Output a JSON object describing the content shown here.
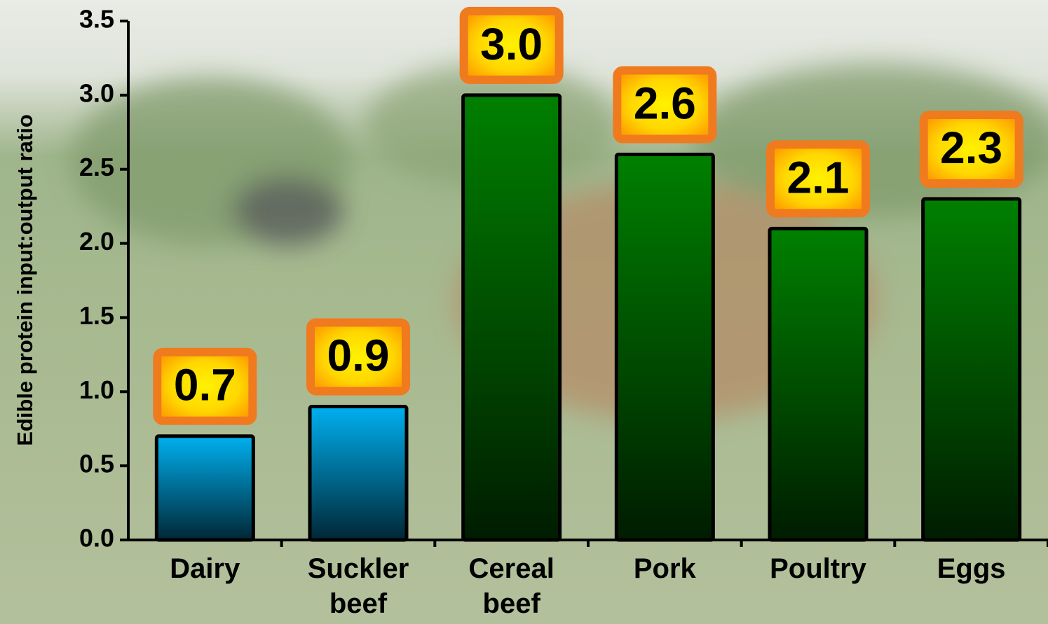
{
  "chart_data": {
    "type": "bar",
    "y_label": "Edible protein input:output ratio",
    "categories": [
      "Dairy",
      "Suckler beef",
      "Cereal beef",
      "Pork",
      "Poultry",
      "Eggs"
    ],
    "values": [
      0.7,
      0.9,
      3.0,
      2.6,
      2.1,
      2.3
    ],
    "value_labels": [
      "0.7",
      "0.9",
      "3.0",
      "2.6",
      "2.1",
      "2.3"
    ],
    "colors": [
      "#00b0f0",
      "#00b0f0",
      "#008000",
      "#008000",
      "#008000",
      "#008000"
    ],
    "ylim": [
      0,
      3.5
    ],
    "yticks": [
      {
        "value": 0,
        "label": "0.0"
      },
      0.5,
      {
        "value": 1,
        "label": "1.0"
      },
      1.5,
      {
        "value": 2,
        "label": "2.0"
      },
      2.5,
      {
        "value": 3,
        "label": "3.0"
      },
      3.5
    ]
  }
}
